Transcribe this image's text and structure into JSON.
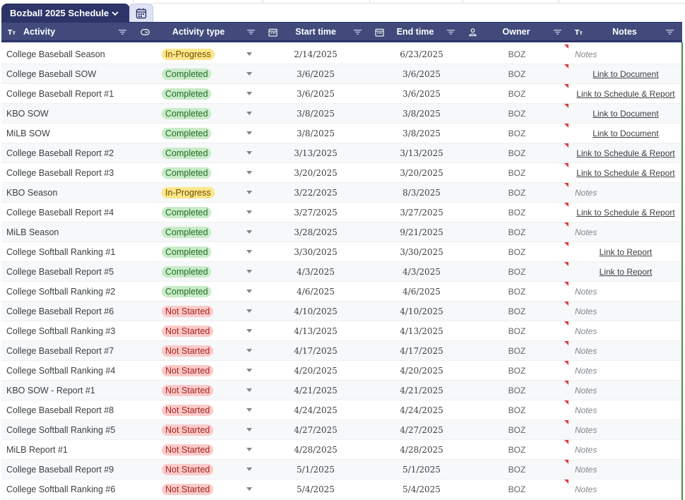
{
  "sheet": {
    "tab_title": "Bozball 2025 Schedule",
    "tab_icon": "chevron-down-icon",
    "table_view_icon": "table-calendar-icon"
  },
  "columns": {
    "activity": "Activity",
    "activity_type": "Activity type",
    "start_time": "Start time",
    "end_time": "End time",
    "owner": "Owner",
    "notes": "Notes"
  },
  "status_colors": {
    "In-Progress": {
      "bg": "#fde68a",
      "fg": "#6b4e00"
    },
    "Completed": {
      "bg": "#c8ecc7",
      "fg": "#256b2a"
    },
    "Not Started": {
      "bg": "#fbcaca",
      "fg": "#a3271f"
    }
  },
  "rows": [
    {
      "activity": "College Baseball Season",
      "type": "In-Progress",
      "start": "2/14/2025",
      "end": "6/23/2025",
      "owner": "BOZ",
      "notes": "Notes",
      "notes_is_link": false
    },
    {
      "activity": "College Baseball SOW",
      "type": "Completed",
      "start": "3/6/2025",
      "end": "3/6/2025",
      "owner": "BOZ",
      "notes": "Link to Document",
      "notes_is_link": true
    },
    {
      "activity": "College Baseball Report #1",
      "type": "Completed",
      "start": "3/6/2025",
      "end": "3/6/2025",
      "owner": "BOZ",
      "notes": "Link to Schedule & Report",
      "notes_is_link": true
    },
    {
      "activity": "KBO SOW",
      "type": "Completed",
      "start": "3/8/2025",
      "end": "3/8/2025",
      "owner": "BOZ",
      "notes": "Link to Document",
      "notes_is_link": true
    },
    {
      "activity": "MiLB SOW",
      "type": "Completed",
      "start": "3/8/2025",
      "end": "3/8/2025",
      "owner": "BOZ",
      "notes": "Link to Document",
      "notes_is_link": true
    },
    {
      "activity": "College Baseball Report #2",
      "type": "Completed",
      "start": "3/13/2025",
      "end": "3/13/2025",
      "owner": "BOZ",
      "notes": "Link to Schedule & Report",
      "notes_is_link": true
    },
    {
      "activity": "College Baseball Report #3",
      "type": "Completed",
      "start": "3/20/2025",
      "end": "3/20/2025",
      "owner": "BOZ",
      "notes": "Link to Schedule & Report",
      "notes_is_link": true
    },
    {
      "activity": "KBO Season",
      "type": "In-Progress",
      "start": "3/22/2025",
      "end": "8/3/2025",
      "owner": "BOZ",
      "notes": "Notes",
      "notes_is_link": false
    },
    {
      "activity": "College Baseball Report #4",
      "type": "Completed",
      "start": "3/27/2025",
      "end": "3/27/2025",
      "owner": "BOZ",
      "notes": "Link to Schedule & Report",
      "notes_is_link": true
    },
    {
      "activity": "MiLB Season",
      "type": "Completed",
      "start": "3/28/2025",
      "end": "9/21/2025",
      "owner": "BOZ",
      "notes": "Notes",
      "notes_is_link": false
    },
    {
      "activity": "College Softball Ranking #1",
      "type": "Completed",
      "start": "3/30/2025",
      "end": "3/30/2025",
      "owner": "BOZ",
      "notes": "Link to Report",
      "notes_is_link": true
    },
    {
      "activity": "College Baseball Report #5",
      "type": "Completed",
      "start": "4/3/2025",
      "end": "4/3/2025",
      "owner": "BOZ",
      "notes": "Link to Report",
      "notes_is_link": true
    },
    {
      "activity": "College Softball Ranking #2",
      "type": "Completed",
      "start": "4/6/2025",
      "end": "4/6/2025",
      "owner": "BOZ",
      "notes": "Notes",
      "notes_is_link": false
    },
    {
      "activity": "College Baseball Report #6",
      "type": "Not Started",
      "start": "4/10/2025",
      "end": "4/10/2025",
      "owner": "BOZ",
      "notes": "Notes",
      "notes_is_link": false
    },
    {
      "activity": "College Softball Ranking #3",
      "type": "Not Started",
      "start": "4/13/2025",
      "end": "4/13/2025",
      "owner": "BOZ",
      "notes": "Notes",
      "notes_is_link": false
    },
    {
      "activity": "College Baseball Report #7",
      "type": "Not Started",
      "start": "4/17/2025",
      "end": "4/17/2025",
      "owner": "BOZ",
      "notes": "Notes",
      "notes_is_link": false
    },
    {
      "activity": "College Softball Ranking #4",
      "type": "Not Started",
      "start": "4/20/2025",
      "end": "4/20/2025",
      "owner": "BOZ",
      "notes": "Notes",
      "notes_is_link": false
    },
    {
      "activity": "KBO SOW - Report #1",
      "type": "Not Started",
      "start": "4/21/2025",
      "end": "4/21/2025",
      "owner": "BOZ",
      "notes": "Notes",
      "notes_is_link": false
    },
    {
      "activity": "College Baseball Report #8",
      "type": "Not Started",
      "start": "4/24/2025",
      "end": "4/24/2025",
      "owner": "BOZ",
      "notes": "Notes",
      "notes_is_link": false
    },
    {
      "activity": "College Softball Ranking #5",
      "type": "Not Started",
      "start": "4/27/2025",
      "end": "4/27/2025",
      "owner": "BOZ",
      "notes": "Notes",
      "notes_is_link": false
    },
    {
      "activity": "MiLB Report #1",
      "type": "Not Started",
      "start": "4/28/2025",
      "end": "4/28/2025",
      "owner": "BOZ",
      "notes": "Notes",
      "notes_is_link": false
    },
    {
      "activity": "College Baseball Report #9",
      "type": "Not Started",
      "start": "5/1/2025",
      "end": "5/1/2025",
      "owner": "BOZ",
      "notes": "Notes",
      "notes_is_link": false
    },
    {
      "activity": "College Softball Ranking #6",
      "type": "Not Started",
      "start": "5/4/2025",
      "end": "5/4/2025",
      "owner": "BOZ",
      "notes": "Notes",
      "notes_is_link": false
    }
  ]
}
